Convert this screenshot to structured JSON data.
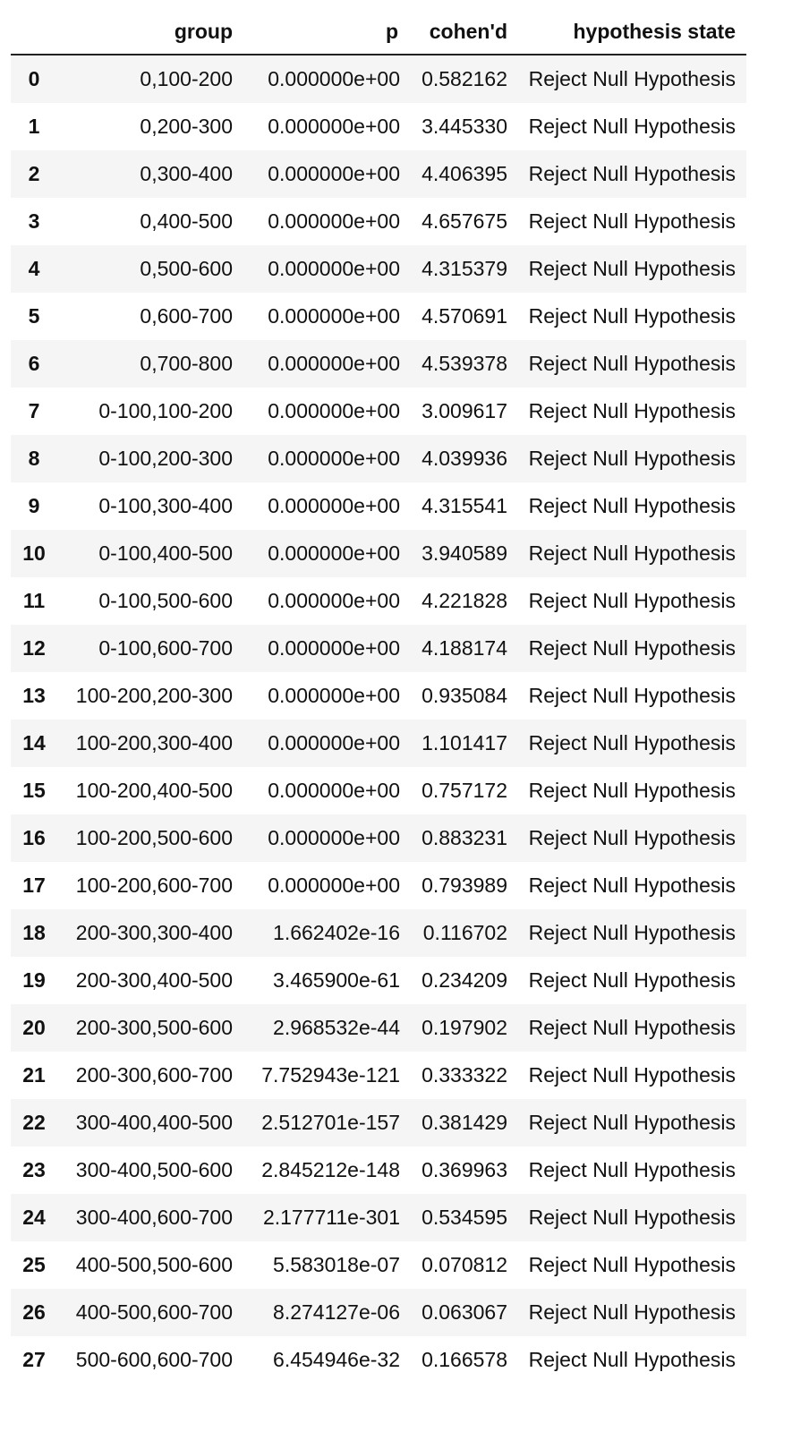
{
  "table": {
    "columns": [
      "",
      "group",
      "p",
      "cohen'd",
      "hypothesis state"
    ],
    "rows": [
      {
        "index": "0",
        "group": "0,100-200",
        "p": "0.000000e+00",
        "d": "0.582162",
        "state": "Reject Null Hypothesis"
      },
      {
        "index": "1",
        "group": "0,200-300",
        "p": "0.000000e+00",
        "d": "3.445330",
        "state": "Reject Null Hypothesis"
      },
      {
        "index": "2",
        "group": "0,300-400",
        "p": "0.000000e+00",
        "d": "4.406395",
        "state": "Reject Null Hypothesis"
      },
      {
        "index": "3",
        "group": "0,400-500",
        "p": "0.000000e+00",
        "d": "4.657675",
        "state": "Reject Null Hypothesis"
      },
      {
        "index": "4",
        "group": "0,500-600",
        "p": "0.000000e+00",
        "d": "4.315379",
        "state": "Reject Null Hypothesis"
      },
      {
        "index": "5",
        "group": "0,600-700",
        "p": "0.000000e+00",
        "d": "4.570691",
        "state": "Reject Null Hypothesis"
      },
      {
        "index": "6",
        "group": "0,700-800",
        "p": "0.000000e+00",
        "d": "4.539378",
        "state": "Reject Null Hypothesis"
      },
      {
        "index": "7",
        "group": "0-100,100-200",
        "p": "0.000000e+00",
        "d": "3.009617",
        "state": "Reject Null Hypothesis"
      },
      {
        "index": "8",
        "group": "0-100,200-300",
        "p": "0.000000e+00",
        "d": "4.039936",
        "state": "Reject Null Hypothesis"
      },
      {
        "index": "9",
        "group": "0-100,300-400",
        "p": "0.000000e+00",
        "d": "4.315541",
        "state": "Reject Null Hypothesis"
      },
      {
        "index": "10",
        "group": "0-100,400-500",
        "p": "0.000000e+00",
        "d": "3.940589",
        "state": "Reject Null Hypothesis"
      },
      {
        "index": "11",
        "group": "0-100,500-600",
        "p": "0.000000e+00",
        "d": "4.221828",
        "state": "Reject Null Hypothesis"
      },
      {
        "index": "12",
        "group": "0-100,600-700",
        "p": "0.000000e+00",
        "d": "4.188174",
        "state": "Reject Null Hypothesis"
      },
      {
        "index": "13",
        "group": "100-200,200-300",
        "p": "0.000000e+00",
        "d": "0.935084",
        "state": "Reject Null Hypothesis"
      },
      {
        "index": "14",
        "group": "100-200,300-400",
        "p": "0.000000e+00",
        "d": "1.101417",
        "state": "Reject Null Hypothesis"
      },
      {
        "index": "15",
        "group": "100-200,400-500",
        "p": "0.000000e+00",
        "d": "0.757172",
        "state": "Reject Null Hypothesis"
      },
      {
        "index": "16",
        "group": "100-200,500-600",
        "p": "0.000000e+00",
        "d": "0.883231",
        "state": "Reject Null Hypothesis"
      },
      {
        "index": "17",
        "group": "100-200,600-700",
        "p": "0.000000e+00",
        "d": "0.793989",
        "state": "Reject Null Hypothesis"
      },
      {
        "index": "18",
        "group": "200-300,300-400",
        "p": "1.662402e-16",
        "d": "0.116702",
        "state": "Reject Null Hypothesis"
      },
      {
        "index": "19",
        "group": "200-300,400-500",
        "p": "3.465900e-61",
        "d": "0.234209",
        "state": "Reject Null Hypothesis"
      },
      {
        "index": "20",
        "group": "200-300,500-600",
        "p": "2.968532e-44",
        "d": "0.197902",
        "state": "Reject Null Hypothesis"
      },
      {
        "index": "21",
        "group": "200-300,600-700",
        "p": "7.752943e-121",
        "d": "0.333322",
        "state": "Reject Null Hypothesis"
      },
      {
        "index": "22",
        "group": "300-400,400-500",
        "p": "2.512701e-157",
        "d": "0.381429",
        "state": "Reject Null Hypothesis"
      },
      {
        "index": "23",
        "group": "300-400,500-600",
        "p": "2.845212e-148",
        "d": "0.369963",
        "state": "Reject Null Hypothesis"
      },
      {
        "index": "24",
        "group": "300-400,600-700",
        "p": "2.177711e-301",
        "d": "0.534595",
        "state": "Reject Null Hypothesis"
      },
      {
        "index": "25",
        "group": "400-500,500-600",
        "p": "5.583018e-07",
        "d": "0.070812",
        "state": "Reject Null Hypothesis"
      },
      {
        "index": "26",
        "group": "400-500,600-700",
        "p": "8.274127e-06",
        "d": "0.063067",
        "state": "Reject Null Hypothesis"
      },
      {
        "index": "27",
        "group": "500-600,600-700",
        "p": "6.454946e-32",
        "d": "0.166578",
        "state": "Reject Null Hypothesis"
      }
    ]
  }
}
